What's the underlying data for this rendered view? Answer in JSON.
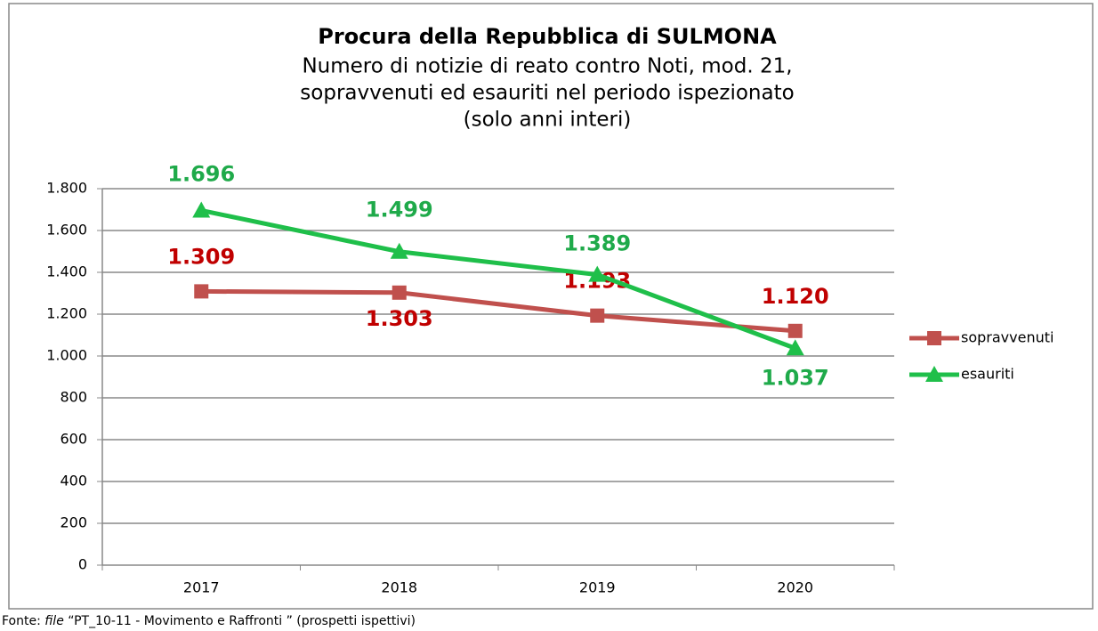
{
  "chart_data": {
    "type": "line",
    "title": "Procura della Repubblica di SULMONA",
    "subtitle": [
      "Numero di notizie di reato contro Noti, mod. 21,",
      "sopravvenuti ed esauriti nel periodo ispezionato",
      "(solo anni interi)"
    ],
    "categories": [
      "2017",
      "2018",
      "2019",
      "2020"
    ],
    "series": [
      {
        "name": "sopravvenuti",
        "color": "#c0504d",
        "label_color": "#c00000",
        "marker": "square",
        "values": [
          1309,
          1303,
          1193,
          1120
        ],
        "value_labels": [
          "1.309",
          "1.303",
          "1.193",
          "1.120"
        ]
      },
      {
        "name": "esauriti",
        "color": "#1fbf4a",
        "label_color": "#1faa4a",
        "marker": "triangle",
        "values": [
          1696,
          1499,
          1389,
          1037
        ],
        "value_labels": [
          "1.696",
          "1.499",
          "1.389",
          "1.037"
        ]
      }
    ],
    "ylim": [
      0,
      1800
    ],
    "yticks": [
      0,
      200,
      400,
      600,
      800,
      {
        "value": 1000,
        "label": "1.000"
      },
      {
        "value": 1200,
        "label": "1.200"
      },
      {
        "value": 1400,
        "label": "1.400"
      },
      {
        "value": 1600,
        "label": "1.600"
      },
      {
        "value": 1800,
        "label": "1.800"
      }
    ],
    "grid": true,
    "legend": "right",
    "source": {
      "prefix": "Fonte: ",
      "italic": "file",
      "rest": " “PT_10-11 - Movimento e Raffronti ” (prospetti ispettivi)"
    }
  }
}
